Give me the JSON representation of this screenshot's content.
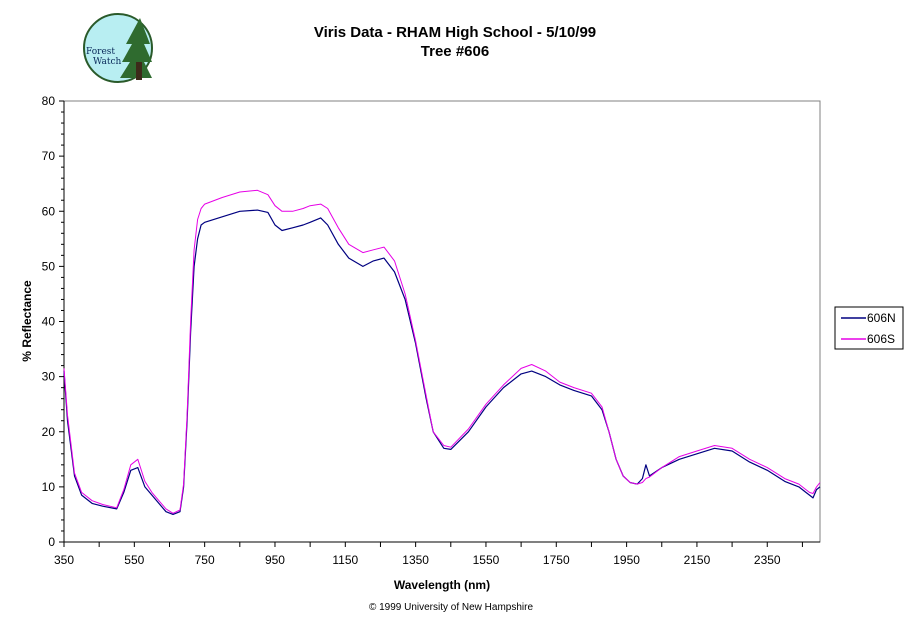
{
  "chart_data": {
    "type": "line",
    "title": "Viris Data - RHAM High School - 5/10/99",
    "subtitle": "Tree #606",
    "xlabel": "Wavelength (nm)",
    "ylabel": "% Reflectance",
    "xlim": [
      350,
      2500
    ],
    "ylim": [
      0,
      80
    ],
    "xticks": [
      350,
      550,
      750,
      950,
      1150,
      1350,
      1550,
      1750,
      1950,
      2150,
      2350
    ],
    "yticks": [
      0,
      10,
      20,
      30,
      40,
      50,
      60,
      70,
      80
    ],
    "grid": false,
    "legend_position": "right",
    "series": [
      {
        "name": "606N",
        "color": "#000080",
        "x": [
          350,
          360,
          380,
          400,
          430,
          460,
          500,
          520,
          540,
          560,
          580,
          600,
          620,
          640,
          660,
          680,
          690,
          700,
          710,
          720,
          730,
          740,
          750,
          800,
          850,
          900,
          930,
          950,
          970,
          1000,
          1030,
          1050,
          1080,
          1100,
          1130,
          1160,
          1200,
          1230,
          1260,
          1290,
          1320,
          1350,
          1380,
          1400,
          1430,
          1450,
          1500,
          1550,
          1600,
          1650,
          1680,
          1720,
          1760,
          1800,
          1850,
          1880,
          1900,
          1920,
          1940,
          1960,
          1980,
          1995,
          2005,
          2015,
          2050,
          2100,
          2150,
          2200,
          2250,
          2300,
          2350,
          2400,
          2440,
          2460,
          2470,
          2480,
          2490,
          2500
        ],
        "y": [
          31,
          22,
          12,
          8.5,
          7,
          6.5,
          6,
          9,
          13,
          13.5,
          10,
          8.5,
          7,
          5.5,
          5,
          5.5,
          10,
          22,
          38,
          50,
          55,
          57.5,
          58,
          59,
          60,
          60.2,
          59.8,
          57.5,
          56.5,
          57,
          57.5,
          58,
          58.8,
          57.5,
          54,
          51.5,
          50,
          51,
          51.5,
          49,
          44,
          36,
          26,
          20,
          17,
          16.8,
          20,
          24.5,
          28,
          30.5,
          31,
          30,
          28.5,
          27.5,
          26.5,
          24,
          20,
          15,
          12,
          10.8,
          10.5,
          11.5,
          14,
          12,
          13.5,
          15,
          16,
          17,
          16.5,
          14.5,
          13,
          11,
          10,
          9,
          8.5,
          8,
          9.5,
          10
        ],
        "line_width": 1.2
      },
      {
        "name": "606S",
        "color": "#e600e6",
        "x": [
          350,
          360,
          380,
          400,
          430,
          460,
          500,
          520,
          540,
          560,
          580,
          600,
          620,
          640,
          660,
          680,
          690,
          700,
          710,
          720,
          730,
          740,
          750,
          800,
          850,
          900,
          930,
          950,
          970,
          1000,
          1030,
          1050,
          1080,
          1100,
          1130,
          1160,
          1200,
          1230,
          1260,
          1290,
          1320,
          1350,
          1380,
          1400,
          1430,
          1450,
          1500,
          1550,
          1600,
          1650,
          1680,
          1720,
          1760,
          1800,
          1850,
          1880,
          1900,
          1920,
          1940,
          1960,
          1980,
          1995,
          2005,
          2015,
          2050,
          2100,
          2150,
          2200,
          2250,
          2300,
          2350,
          2400,
          2440,
          2460,
          2470,
          2480,
          2490,
          2500
        ],
        "y": [
          31.5,
          23,
          12.5,
          9,
          7.5,
          6.8,
          6.2,
          9.5,
          14,
          15,
          11,
          9,
          7.5,
          6,
          5.2,
          5.8,
          10.5,
          23,
          40,
          53,
          58.5,
          60.5,
          61.3,
          62.5,
          63.5,
          63.8,
          63,
          61,
          60,
          60,
          60.5,
          61,
          61.3,
          60.5,
          57,
          54,
          52.5,
          53,
          53.5,
          51,
          45,
          36.5,
          26.5,
          20,
          17.5,
          17.2,
          20.5,
          25,
          28.5,
          31.5,
          32.2,
          31,
          29,
          28,
          27,
          24.5,
          20,
          15,
          12,
          10.8,
          10.5,
          10.8,
          11.5,
          11.8,
          13.5,
          15.5,
          16.5,
          17.5,
          17,
          15,
          13.5,
          11.5,
          10.5,
          9.5,
          9,
          8.8,
          10,
          10.8
        ],
        "line_width": 1.0
      }
    ],
    "footer": "© 1999 University of New Hampshire"
  },
  "logo": {
    "text_line1": "Forest",
    "text_line2": "Watch"
  }
}
